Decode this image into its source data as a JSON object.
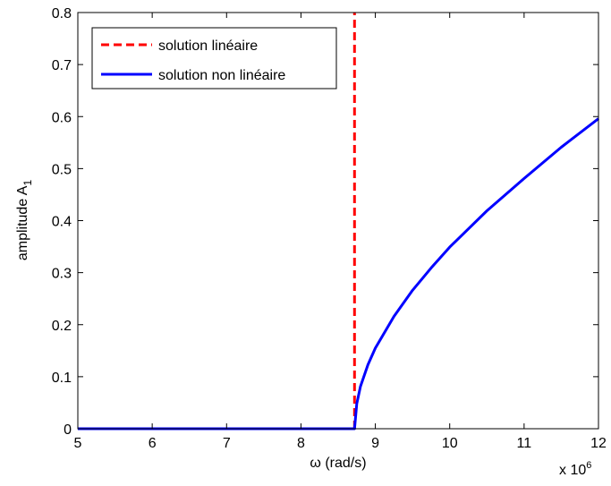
{
  "chart_data": {
    "type": "line",
    "xlabel": "ω (rad/s)",
    "ylabel": "amplitude A",
    "ylabel_subscript": "1",
    "x_multiplier": "x 10",
    "x_multiplier_exponent": "6",
    "xlim": [
      5,
      12
    ],
    "ylim": [
      0,
      0.8
    ],
    "xticks": [
      5,
      6,
      7,
      8,
      9,
      10,
      11,
      12
    ],
    "xtick_labels": [
      "5",
      "6",
      "7",
      "8",
      "9",
      "10",
      "11",
      "12"
    ],
    "yticks": [
      0,
      0.1,
      0.2,
      0.3,
      0.4,
      0.5,
      0.6,
      0.7,
      0.8
    ],
    "ytick_labels": [
      "0",
      "0.1",
      "0.2",
      "0.3",
      "0.4",
      "0.5",
      "0.6",
      "0.7",
      "0.8"
    ],
    "grid": false,
    "legend_position": "top-left",
    "series": [
      {
        "name": "solution linéaire",
        "color": "#ff0000",
        "style": "dashed",
        "x": [
          8.72,
          8.72
        ],
        "y": [
          0,
          0.8
        ]
      },
      {
        "name": "solution non linéaire",
        "color": "#0000ff",
        "style": "solid",
        "x": [
          5.0,
          8.72,
          8.75,
          8.8,
          8.9,
          9.0,
          9.25,
          9.5,
          9.75,
          10.0,
          10.5,
          11.0,
          11.5,
          12.0
        ],
        "y": [
          0.0,
          0.0,
          0.048,
          0.081,
          0.123,
          0.155,
          0.216,
          0.266,
          0.309,
          0.349,
          0.419,
          0.481,
          0.541,
          0.596
        ]
      }
    ]
  }
}
